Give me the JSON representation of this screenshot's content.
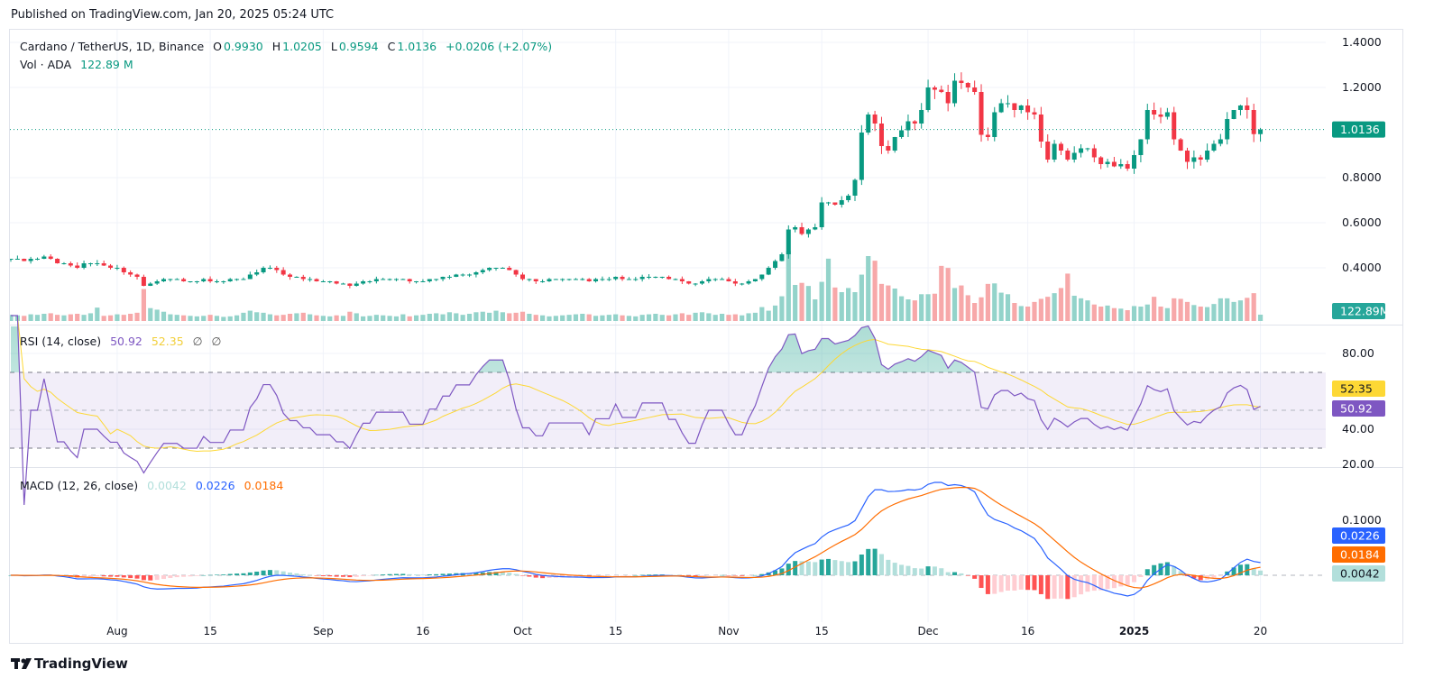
{
  "published": "Published on TradingView.com, Jan 20, 2025 05:24 UTC",
  "legend": {
    "symbol": "Cardano / TetherUS, 1D, Binance",
    "o_label": "O",
    "o": "0.9930",
    "h_label": "H",
    "h": "1.0205",
    "l_label": "L",
    "l": "0.9594",
    "c_label": "C",
    "c": "1.0136",
    "change": "+0.0206 (+2.07%)",
    "vol_label": "Vol · ADA",
    "vol": "122.89 M"
  },
  "rsi_legend": {
    "label": "RSI (14, close)",
    "rsi": "50.92",
    "ma": "52.35",
    "x1": "∅",
    "x2": "∅"
  },
  "macd_legend": {
    "label": "MACD (12, 26, close)",
    "hist": "0.0042",
    "macd": "0.0226",
    "signal": "0.0184"
  },
  "footer": {
    "brand": "TradingView"
  },
  "colors": {
    "up": "#089981",
    "down": "#f23645",
    "vol_up": "#93d3ca",
    "vol_down": "#f7a8a9",
    "rsi": "#7e57c2",
    "rsi_ma": "#fdd835",
    "macd": "#2962ff",
    "signal": "#ff6d00"
  },
  "chart_data": {
    "type": "candlestick",
    "title": "Cardano / TetherUS, 1D, Binance",
    "start_date": "2024-07-16",
    "end_date": "2025-01-20",
    "last_candle": {
      "open": 0.993,
      "high": 1.0205,
      "low": 0.9594,
      "close": 1.0136
    },
    "close": [
      0.44,
      0.44,
      0.43,
      0.44,
      0.44,
      0.45,
      0.44,
      0.42,
      0.42,
      0.41,
      0.4,
      0.42,
      0.42,
      0.42,
      0.41,
      0.4,
      0.4,
      0.38,
      0.37,
      0.36,
      0.32,
      0.33,
      0.34,
      0.35,
      0.35,
      0.35,
      0.34,
      0.34,
      0.34,
      0.35,
      0.34,
      0.34,
      0.34,
      0.35,
      0.35,
      0.35,
      0.37,
      0.38,
      0.4,
      0.4,
      0.39,
      0.37,
      0.36,
      0.36,
      0.35,
      0.35,
      0.34,
      0.34,
      0.34,
      0.33,
      0.33,
      0.32,
      0.33,
      0.34,
      0.34,
      0.35,
      0.35,
      0.35,
      0.35,
      0.35,
      0.34,
      0.34,
      0.34,
      0.35,
      0.35,
      0.36,
      0.36,
      0.37,
      0.37,
      0.37,
      0.38,
      0.39,
      0.4,
      0.4,
      0.4,
      0.39,
      0.37,
      0.35,
      0.35,
      0.34,
      0.34,
      0.35,
      0.35,
      0.35,
      0.35,
      0.35,
      0.35,
      0.34,
      0.35,
      0.35,
      0.35,
      0.36,
      0.35,
      0.35,
      0.35,
      0.36,
      0.36,
      0.36,
      0.36,
      0.35,
      0.35,
      0.34,
      0.33,
      0.33,
      0.34,
      0.35,
      0.35,
      0.35,
      0.34,
      0.33,
      0.33,
      0.34,
      0.35,
      0.37,
      0.4,
      0.43,
      0.46,
      0.57,
      0.58,
      0.55,
      0.57,
      0.58,
      0.69,
      0.69,
      0.68,
      0.7,
      0.72,
      0.79,
      1.0,
      1.08,
      1.04,
      0.94,
      0.92,
      0.98,
      1.01,
      1.05,
      1.04,
      1.1,
      1.2,
      1.19,
      1.18,
      1.13,
      1.23,
      1.22,
      1.2,
      1.18,
      0.99,
      0.98,
      1.09,
      1.13,
      1.13,
      1.1,
      1.12,
      1.09,
      1.08,
      0.96,
      0.88,
      0.95,
      0.92,
      0.88,
      0.91,
      0.93,
      0.93,
      0.89,
      0.86,
      0.87,
      0.85,
      0.86,
      0.84,
      0.9,
      0.97,
      1.1,
      1.08,
      1.07,
      1.09,
      0.97,
      0.92,
      0.87,
      0.89,
      0.88,
      0.92,
      0.95,
      0.97,
      1.06,
      1.1,
      1.12,
      1.1,
      0.993,
      1.0136
    ],
    "volume_millions": [
      120,
      110,
      100,
      130,
      120,
      140,
      150,
      120,
      110,
      130,
      140,
      120,
      150,
      260,
      100,
      110,
      130,
      120,
      140,
      160,
      620,
      250,
      220,
      180,
      130,
      120,
      110,
      100,
      90,
      100,
      120,
      100,
      80,
      90,
      110,
      160,
      200,
      170,
      160,
      130,
      110,
      120,
      140,
      150,
      160,
      130,
      110,
      100,
      90,
      110,
      100,
      180,
      150,
      90,
      100,
      120,
      110,
      100,
      90,
      130,
      90,
      110,
      120,
      140,
      150,
      130,
      170,
      150,
      120,
      140,
      170,
      180,
      160,
      200,
      170,
      150,
      160,
      180,
      140,
      120,
      110,
      90,
      100,
      110,
      120,
      130,
      140,
      130,
      100,
      110,
      120,
      130,
      110,
      100,
      90,
      120,
      130,
      140,
      120,
      110,
      130,
      150,
      120,
      160,
      170,
      150,
      120,
      140,
      120,
      130,
      110,
      150,
      160,
      270,
      200,
      300,
      480,
      1360,
      700,
      740,
      680,
      420,
      760,
      1210,
      650,
      560,
      640,
      560,
      900,
      1260,
      1170,
      720,
      690,
      630,
      480,
      420,
      400,
      520,
      520,
      530,
      1070,
      1030,
      640,
      690,
      500,
      350,
      460,
      720,
      730,
      550,
      520,
      350,
      290,
      280,
      370,
      430,
      470,
      540,
      640,
      920,
      490,
      440,
      400,
      320,
      280,
      300,
      250,
      240,
      210,
      290,
      280,
      320,
      470,
      280,
      250,
      440,
      430,
      370,
      310,
      280,
      270,
      330,
      440,
      440,
      370,
      400,
      450,
      540,
      122.89
    ],
    "price_ticks": [
      "1.4000",
      "1.2000",
      "0.8000",
      "0.6000",
      "0.4000"
    ],
    "current_price": "1.0136",
    "current_volume": "122.89M",
    "ylim": [
      0.25,
      1.4
    ],
    "x_ticks": [
      {
        "label": "Aug",
        "index": 16
      },
      {
        "label": "15",
        "index": 30
      },
      {
        "label": "Sep",
        "index": 47
      },
      {
        "label": "16",
        "index": 62
      },
      {
        "label": "Oct",
        "index": 77
      },
      {
        "label": "15",
        "index": 91
      },
      {
        "label": "Nov",
        "index": 108
      },
      {
        "label": "15",
        "index": 122
      },
      {
        "label": "Dec",
        "index": 138
      },
      {
        "label": "16",
        "index": 153
      },
      {
        "label": "2025",
        "index": 169,
        "bold": true
      },
      {
        "label": "20",
        "index": 188
      }
    ],
    "rsi": {
      "period": 14,
      "ma_period": 14,
      "ticks": [
        "80.00",
        "40.00",
        "20.00"
      ],
      "bands": [
        70,
        50,
        30
      ],
      "last": "50.92",
      "last_ma": "52.35"
    },
    "macd": {
      "fast": 12,
      "slow": 26,
      "signal": 9,
      "ticks": [
        "0.1000"
      ],
      "last_macd": "0.0226",
      "last_signal": "0.0184",
      "last_hist": "0.0042"
    }
  }
}
